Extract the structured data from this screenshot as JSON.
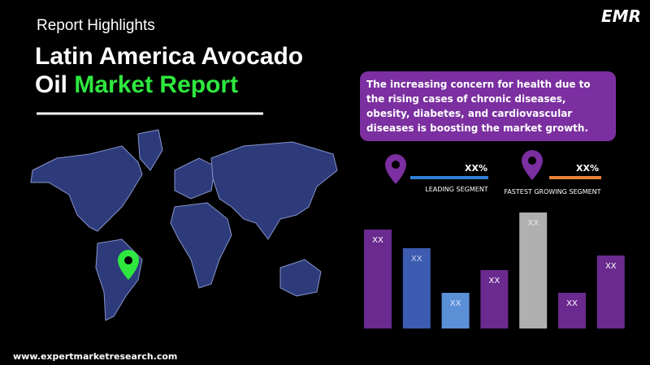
{
  "header": {
    "subtitle": "Report Highlights",
    "title_line1": "Latin America Avocado",
    "title_line2_prefix": "Oil",
    "title_line2_highlight": "Market Report"
  },
  "logo": "EMR",
  "summary": "The increasing concern for health due to the rising cases of chronic diseases, obesity, diabetes, and cardiovascular diseases is boosting the market growth.",
  "segments": [
    {
      "value": "XX%",
      "label": "LEADING SEGMENT"
    },
    {
      "value": "XX%",
      "label": "FASTEST GROWING SEGMENT"
    }
  ],
  "bar_labels": [
    "XX",
    "XX",
    "XX",
    "XX",
    "XX",
    "XX",
    "XX"
  ],
  "footer": "www.expertmarketresearch.com"
}
